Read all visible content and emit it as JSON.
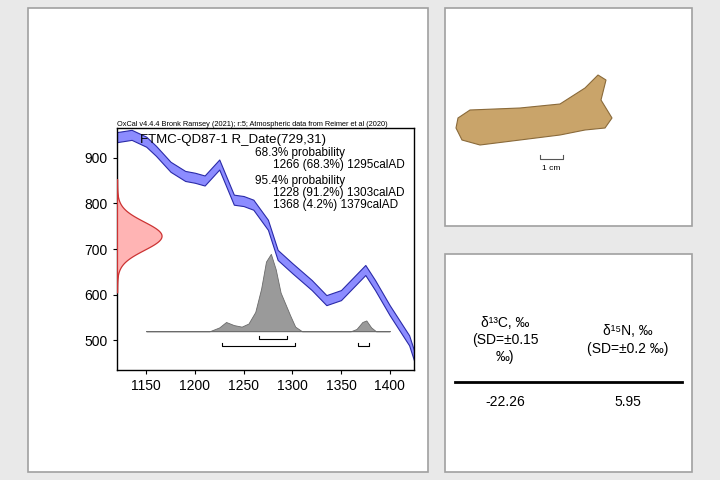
{
  "chart_data": {
    "type": "radiocarbon_calibration",
    "header": "OxCal v4.4.4 Bronk Ramsey (2021); r:5; Atmospheric data from Reimer et al (2020)",
    "title": "FTMC-QD87-1 R_Date(729,31)",
    "r_date": {
      "mean": 729,
      "sd": 31
    },
    "xlim": [
      1120,
      1425
    ],
    "ylim": [
      435,
      965
    ],
    "xticks": [
      1150,
      1200,
      1250,
      1300,
      1350,
      1400
    ],
    "yticks": [
      500,
      600,
      700,
      800,
      900
    ],
    "calibration_curve": {
      "x": [
        1120,
        1135,
        1150,
        1160,
        1175,
        1190,
        1200,
        1210,
        1225,
        1240,
        1250,
        1260,
        1275,
        1285,
        1300,
        1320,
        1335,
        1350,
        1360,
        1375,
        1385,
        1400,
        1420,
        1425
      ],
      "y": [
        945,
        950,
        935,
        915,
        880,
        860,
        856,
        850,
        885,
        808,
        805,
        797,
        753,
        687,
        658,
        621,
        588,
        599,
        621,
        654,
        621,
        566,
        500,
        467
      ],
      "error": 11
    },
    "posterior": {
      "x": [
        1150,
        1215,
        1225,
        1232,
        1240,
        1248,
        1255,
        1262,
        1268,
        1273,
        1278,
        1283,
        1288,
        1293,
        1298,
        1303,
        1310,
        1360,
        1366,
        1372,
        1376,
        1381,
        1386,
        1400
      ],
      "density": [
        0,
        0,
        0.05,
        0.12,
        0.08,
        0.06,
        0.1,
        0.25,
        0.55,
        0.9,
        1.0,
        0.8,
        0.5,
        0.35,
        0.2,
        0.06,
        0,
        0,
        0.03,
        0.12,
        0.14,
        0.05,
        0,
        0
      ]
    },
    "ranges": [
      {
        "label": "68.3% probability",
        "intervals": [
          {
            "text": "1266 (68.3%) 1295calAD",
            "from": 1266,
            "to": 1295
          }
        ]
      },
      {
        "label": "95.4% probability",
        "intervals": [
          {
            "text": "1228 (91.2%) 1303calAD",
            "from": 1228,
            "to": 1303
          },
          {
            "text": "1368 (4.2%) 1379calAD",
            "from": 1368,
            "to": 1379
          }
        ]
      }
    ]
  },
  "photo": {
    "scale_bar": "1 cm"
  },
  "table": {
    "header": [
      "δ¹³C, ‰\n(SD=±0.15\n‰)",
      "δ¹⁵N, ‰\n(SD=±0.2 ‰)"
    ],
    "rows": [
      [
        -22.26,
        5.95
      ]
    ]
  }
}
